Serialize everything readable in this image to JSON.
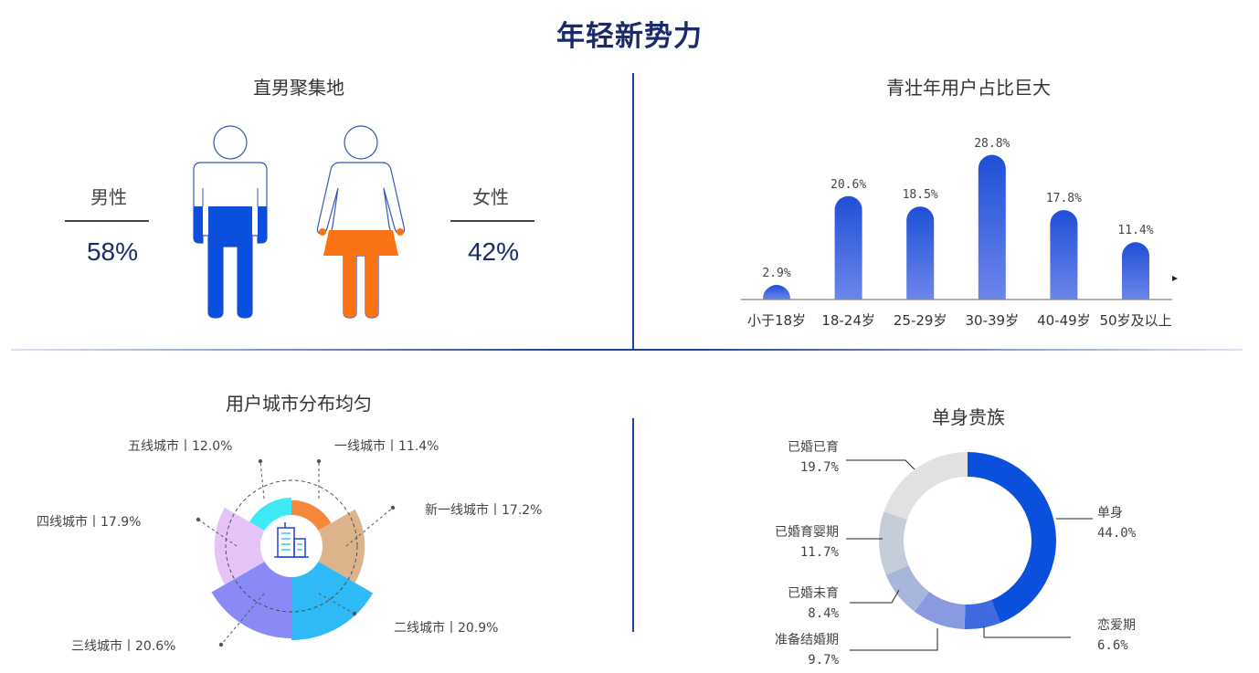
{
  "title": "年轻新势力",
  "gender": {
    "title": "直男聚集地",
    "male_label": "男性",
    "male_pct": "58%",
    "female_label": "女性",
    "female_pct": "42%",
    "colors": {
      "male": "#0b50dc",
      "female": "#f97315",
      "outline": "#3856b8"
    }
  },
  "age": {
    "title": "青壮年用户占比巨大"
  },
  "city": {
    "title": "用户城市分布均匀"
  },
  "single": {
    "title": "单身贵族"
  },
  "chart_data": [
    {
      "type": "bar",
      "title": "青壮年用户占比巨大",
      "categories": [
        "小于18岁",
        "18-24岁",
        "25-29岁",
        "30-39岁",
        "40-49岁",
        "50岁及以上"
      ],
      "values": [
        2.9,
        20.6,
        18.5,
        28.8,
        17.8,
        11.4
      ],
      "labels": [
        "2.9%",
        "20.6%",
        "18.5%",
        "28.8%",
        "17.8%",
        "11.4%"
      ],
      "ylim": [
        0,
        30
      ],
      "grid": false,
      "color": "#2a5ad9"
    },
    {
      "type": "pie",
      "subtype": "rose",
      "title": "用户城市分布均匀",
      "categories": [
        "一线城市",
        "新一线城市",
        "二线城市",
        "三线城市",
        "四线城市",
        "五线城市"
      ],
      "values": [
        11.4,
        17.2,
        20.9,
        20.6,
        17.9,
        12.0
      ],
      "labels": [
        "一线城市丨11.4%",
        "新一线城市丨17.2%",
        "二线城市丨20.9%",
        "三线城市丨20.6%",
        "四线城市丨17.9%",
        "五线城市丨12.0%"
      ],
      "colors": [
        "#f5883a",
        "#dcb48c",
        "#2fbaf7",
        "#8a8af7",
        "#e6c3f7",
        "#3ee8f5"
      ]
    },
    {
      "type": "pie",
      "subtype": "donut",
      "title": "单身贵族",
      "categories": [
        "单身",
        "恋爱期",
        "准备结婚期",
        "已婚未育",
        "已婚育婴期",
        "已婚已育"
      ],
      "values": [
        44.0,
        6.6,
        9.7,
        8.4,
        11.7,
        19.7
      ],
      "value_labels": [
        "44.0%",
        "6.6%",
        "9.7%",
        "8.4%",
        "11.7%",
        "19.7%"
      ],
      "colors": [
        "#0b50dc",
        "#3f6ae0",
        "#8a9ae0",
        "#a9b6dc",
        "#c4ccd8",
        "#e1e1e4"
      ]
    }
  ]
}
